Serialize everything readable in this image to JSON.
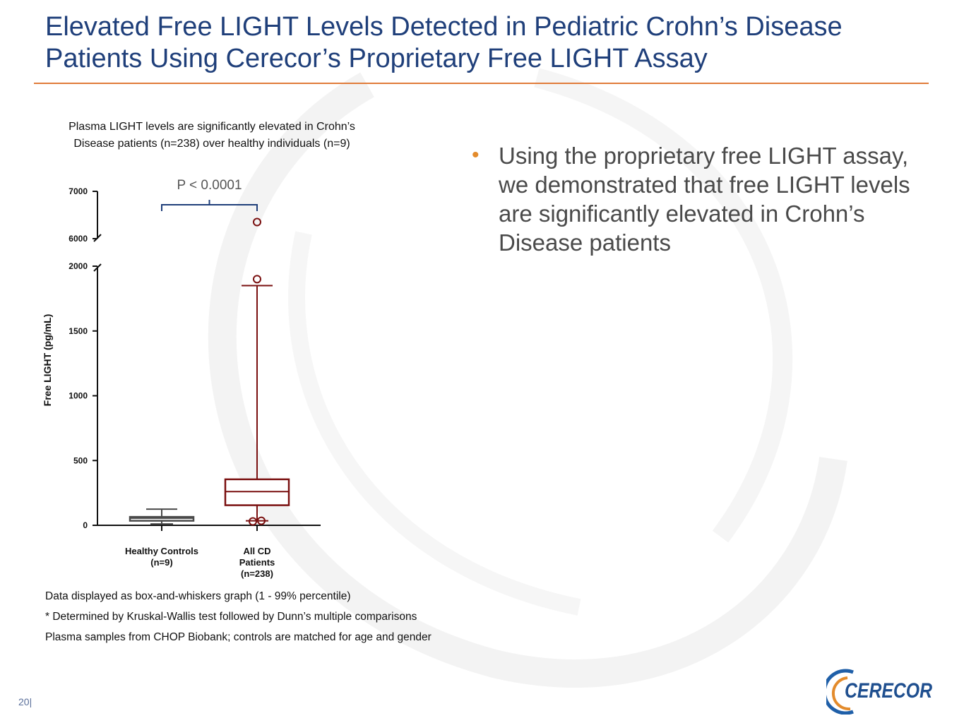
{
  "slide": {
    "title_line1": "Elevated Free LIGHT Levels Detected in Pediatric Crohn’s Disease",
    "title_line2": "Patients Using Cerecor’s Proprietary Free LIGHT Assay",
    "page_number": "20|",
    "logo_text": "CERECOR",
    "accent_color": "#e07b39",
    "title_color": "#1f3f7a"
  },
  "chart_caption": {
    "line1": "Plasma LIGHT levels are significantly elevated in Crohn’s",
    "line2": "Disease patients (n=238) over healthy individuals (n=9)"
  },
  "bullet": {
    "text": "Using the proprietary free LIGHT assay, we demonstrated that free LIGHT levels are significantly elevated in Crohn’s Disease patients"
  },
  "notes": [
    "Data displayed as box-and-whiskers graph (1 - 99% percentile)",
    "* Determined by Kruskal-Wallis test followed by Dunn’s multiple comparisons",
    "Plasma samples from CHOP Biobank; controls are matched for age and gender"
  ],
  "chart_data": {
    "type": "box",
    "ylabel": "Free LIGHT (pg/mL)",
    "y_ticks_lower": [
      0,
      500,
      1000,
      1500,
      2000
    ],
    "y_ticks_upper": [
      6000,
      7000
    ],
    "y_axis_break": [
      2000,
      6000
    ],
    "ylim_lower": [
      0,
      2000
    ],
    "ylim_upper": [
      6000,
      7000
    ],
    "significance": "P <  0.0001",
    "groups": [
      {
        "label_lines": [
          "Healthy Controls",
          "(n=9)"
        ],
        "color": "#4a4a4a",
        "whisker_low": 10,
        "q1": 35,
        "median": 55,
        "q3": 65,
        "whisker_high": 125,
        "outliers": []
      },
      {
        "label_lines": [
          "All CD",
          "Patients",
          "(n=238)"
        ],
        "color": "#7a1010",
        "whisker_low": 35,
        "q1": 155,
        "median": 260,
        "q3": 355,
        "whisker_high": 1850,
        "outliers": [
          30,
          35,
          1900,
          6350
        ]
      }
    ]
  }
}
